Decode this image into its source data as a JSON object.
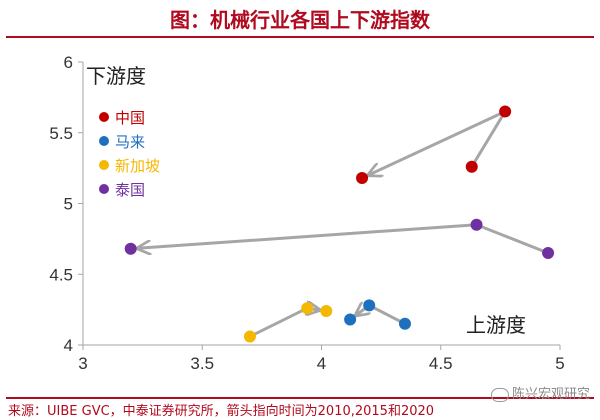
{
  "header": {
    "title": "图：机械行业各国上下游指数"
  },
  "colors": {
    "accent": "#b00a1e",
    "arrow": "#a6a6a6",
    "axis": "#a6a6a6",
    "China": "#c00000",
    "Malaysia": "#1f6fbf",
    "Singapore": "#f5b800",
    "Thailand": "#7030a0"
  },
  "chart_data": {
    "type": "scatter",
    "xlabel": "上游度",
    "ylabel": "下游度",
    "xlim": [
      3,
      5
    ],
    "ylim": [
      4,
      6
    ],
    "xticks": [
      "3",
      "3.5",
      "4",
      "4.5",
      "5"
    ],
    "yticks": [
      "4",
      "4.5",
      "5",
      "5.5",
      "6"
    ],
    "xtick_values": [
      3,
      3.5,
      4,
      4.5,
      5
    ],
    "ytick_values": [
      4,
      4.5,
      5,
      5.5,
      6
    ],
    "legend_position": "top-left",
    "series": [
      {
        "name": "中国",
        "color_key": "China",
        "points": [
          [
            4.63,
            5.26
          ],
          [
            4.77,
            5.65
          ],
          [
            4.17,
            5.18
          ]
        ]
      },
      {
        "name": "马来",
        "color_key": "Malaysia",
        "points": [
          [
            4.35,
            4.15
          ],
          [
            4.2,
            4.28
          ],
          [
            4.12,
            4.18
          ]
        ]
      },
      {
        "name": "新加坡",
        "color_key": "Singapore",
        "points": [
          [
            3.7,
            4.06
          ],
          [
            3.94,
            4.26
          ],
          [
            4.02,
            4.24
          ]
        ]
      },
      {
        "name": "泰国",
        "color_key": "Thailand",
        "points": [
          [
            4.95,
            4.65
          ],
          [
            4.65,
            4.85
          ],
          [
            3.2,
            4.68
          ]
        ]
      }
    ]
  },
  "footer": {
    "source": "来源：UIBE GVC，中泰证券研究所，箭头指向时间为2010,2015和2020",
    "watermark": "陈兴宏观研究"
  }
}
